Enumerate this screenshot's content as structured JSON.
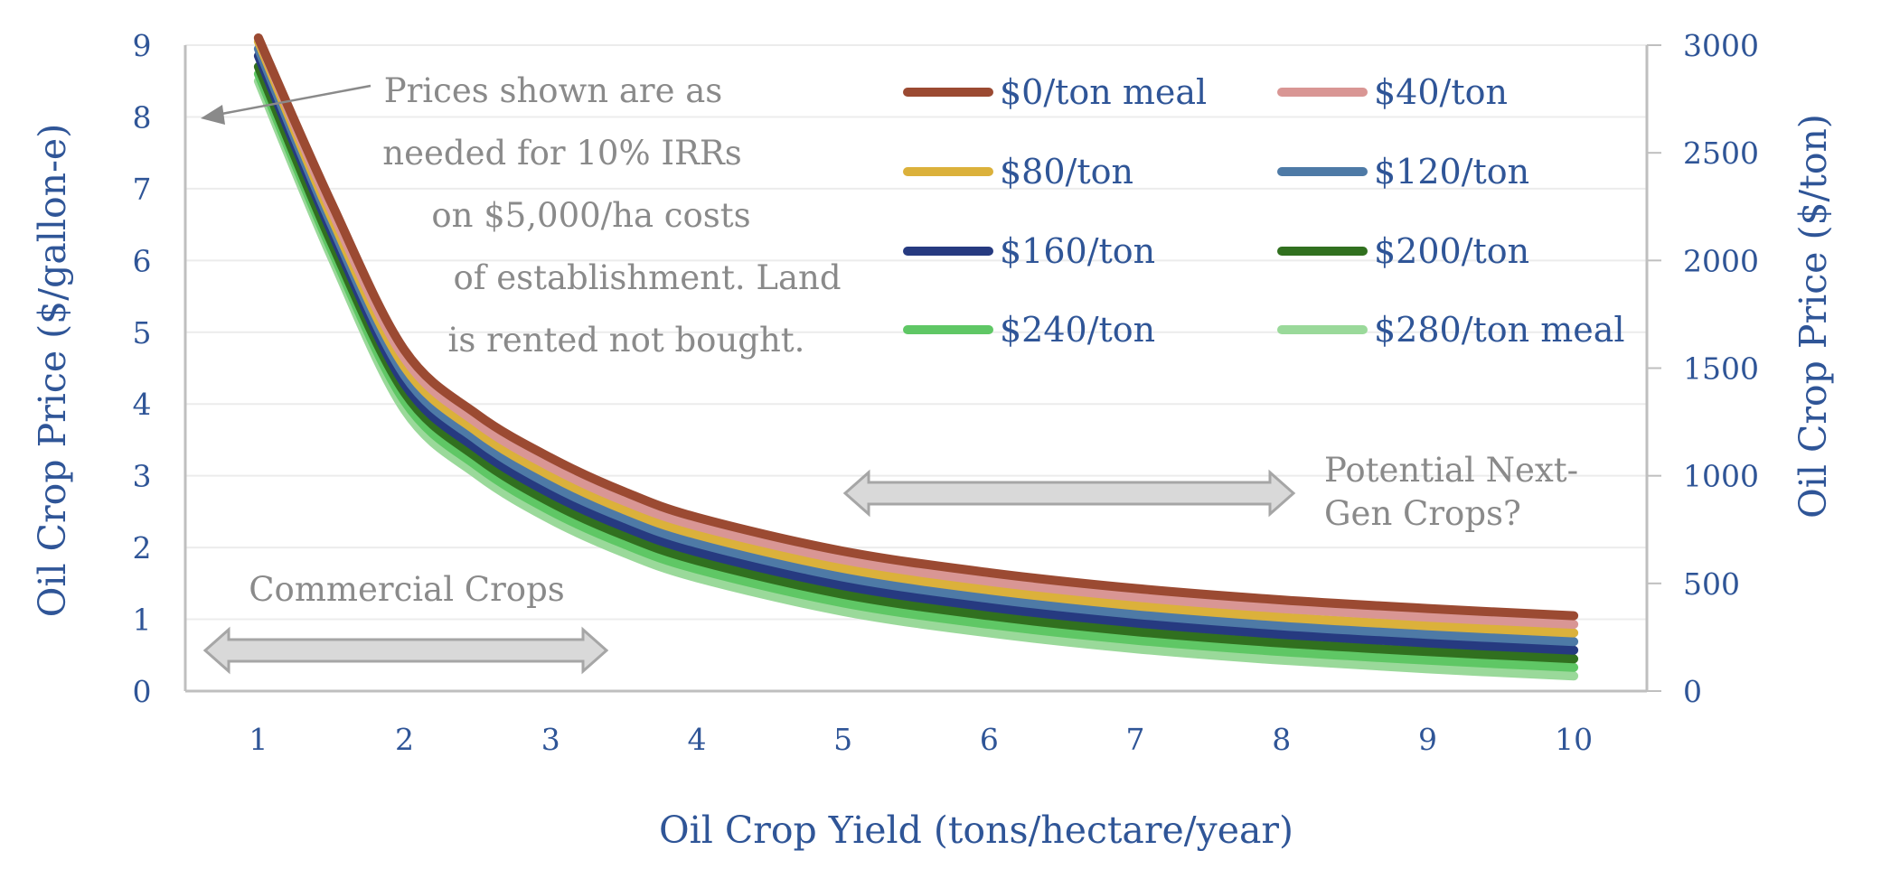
{
  "chart_data": {
    "type": "line",
    "title": "",
    "xlabel": "Oil Crop Yield (tons/hectare/year)",
    "ylabel_left": "Oil Crop Price ($/gallon-e)",
    "ylabel_right": "Oil Crop Price ($/ton)",
    "xlim": [
      0.5,
      10.5
    ],
    "ylim_left": [
      0,
      9
    ],
    "ylim_right": [
      0,
      3000
    ],
    "x_ticks": [
      "1",
      "2",
      "3",
      "4",
      "5",
      "6",
      "7",
      "8",
      "9",
      "10"
    ],
    "y_ticks_left": [
      "0",
      "1",
      "2",
      "3",
      "4",
      "5",
      "6",
      "7",
      "8",
      "9"
    ],
    "y_ticks_right": [
      "0",
      "500",
      "1000",
      "1500",
      "2000",
      "2500",
      "3000"
    ],
    "grid": "horizontal",
    "legend_position": "top-right",
    "x": [
      1,
      1.5,
      2,
      2.5,
      3,
      3.5,
      4,
      5,
      6,
      7,
      8,
      9,
      10
    ],
    "series": [
      {
        "name": "$0/ton meal",
        "color": "#9b4a32",
        "values": [
          9.2,
          6.8,
          4.75,
          3.85,
          3.25,
          2.78,
          2.42,
          1.95,
          1.65,
          1.43,
          1.27,
          1.15,
          1.05
        ]
      },
      {
        "name": "$40/ton",
        "color": "#d99694",
        "values": [
          9.15,
          6.7,
          4.64,
          3.73,
          3.12,
          2.65,
          2.3,
          1.83,
          1.53,
          1.31,
          1.15,
          1.03,
          0.93
        ]
      },
      {
        "name": "$80/ton",
        "color": "#dbb13b",
        "values": [
          9.05,
          6.6,
          4.52,
          3.61,
          3.0,
          2.53,
          2.18,
          1.71,
          1.41,
          1.19,
          1.03,
          0.91,
          0.81
        ]
      },
      {
        "name": "$120/ton",
        "color": "#4e7aa6",
        "values": [
          8.95,
          6.5,
          4.4,
          3.49,
          2.87,
          2.41,
          2.06,
          1.59,
          1.29,
          1.07,
          0.91,
          0.79,
          0.69
        ]
      },
      {
        "name": "$160/ton",
        "color": "#263a80",
        "values": [
          8.85,
          6.4,
          4.28,
          3.37,
          2.75,
          2.29,
          1.94,
          1.47,
          1.17,
          0.95,
          0.79,
          0.67,
          0.57
        ]
      },
      {
        "name": "$200/ton",
        "color": "#31701f",
        "values": [
          8.7,
          6.25,
          4.16,
          3.25,
          2.63,
          2.17,
          1.82,
          1.35,
          1.05,
          0.83,
          0.67,
          0.55,
          0.45
        ]
      },
      {
        "name": "$240/ton",
        "color": "#5fc765",
        "values": [
          8.6,
          6.15,
          4.04,
          3.13,
          2.51,
          2.05,
          1.7,
          1.23,
          0.93,
          0.71,
          0.55,
          0.43,
          0.33
        ]
      },
      {
        "name": "$280/ton meal",
        "color": "#9ad99a",
        "values": [
          8.5,
          6.05,
          3.92,
          3.01,
          2.39,
          1.93,
          1.58,
          1.11,
          0.81,
          0.59,
          0.43,
          0.31,
          0.21
        ]
      }
    ],
    "annotations": {
      "note_lines": [
        "Prices shown are as",
        "needed for 10% IRRs",
        "on $5,000/ha costs",
        "of establishment. Land",
        "is rented not bought."
      ],
      "commercial": "Commercial Crops",
      "nextgen_lines": [
        "Potential Next-",
        "Gen Crops?"
      ]
    }
  }
}
